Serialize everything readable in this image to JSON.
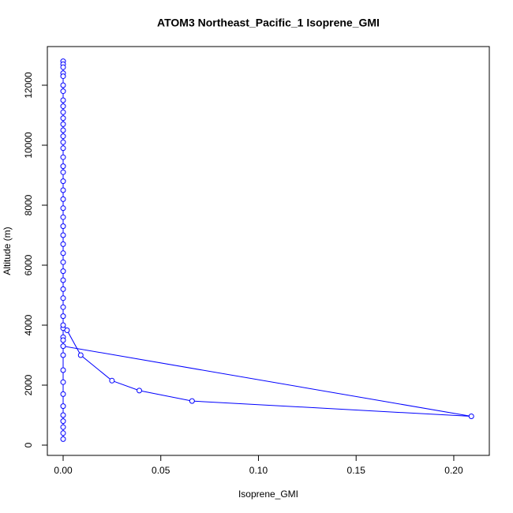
{
  "chart_data": {
    "type": "line",
    "title": "ATOM3 Northeast_Pacific_1 Isoprene_GMI",
    "x_label": "Isoprene_GMI",
    "y_label": "Altitude (m)",
    "color": "#0000ff",
    "x": [
      0,
      0,
      0,
      0,
      0,
      0,
      0,
      0,
      0,
      0,
      0,
      0,
      0,
      0,
      0,
      0,
      0,
      0,
      0,
      0,
      0,
      0,
      0,
      0,
      0,
      0,
      0,
      0,
      0,
      0,
      0,
      0,
      0,
      0,
      0,
      0,
      0,
      0,
      0.209,
      0.066,
      0.039,
      0.025,
      0.009,
      0.002,
      0,
      0,
      0,
      0,
      0,
      0,
      0,
      0,
      0,
      0,
      0,
      0
    ],
    "values": [
      12800,
      12700,
      12600,
      12400,
      12300,
      12000,
      11800,
      11500,
      11300,
      11100,
      10900,
      10700,
      10500,
      10300,
      10100,
      9900,
      9600,
      9300,
      9100,
      8800,
      8500,
      8200,
      7900,
      7600,
      7300,
      7000,
      6700,
      6400,
      6100,
      5800,
      5500,
      5200,
      4900,
      4600,
      4300,
      3900,
      3600,
      3300,
      960,
      1470,
      1820,
      2150,
      3000,
      3830,
      4000,
      3500,
      3000,
      2500,
      2100,
      1700,
      1300,
      1000,
      800,
      600,
      400,
      200
    ],
    "xlim": [
      -0.00808,
      0.2182
    ],
    "ylim": [
      -342,
      13289
    ],
    "xticks": [
      {
        "value": 0,
        "label": "0.00"
      },
      {
        "value": 0.05,
        "label": "0.05"
      },
      {
        "value": 0.1,
        "label": "0.10"
      },
      {
        "value": 0.15,
        "label": "0.15"
      },
      {
        "value": 0.2,
        "label": "0.20"
      }
    ],
    "yticks": [
      0,
      2000,
      4000,
      6000,
      8000,
      10000,
      12000
    ]
  }
}
